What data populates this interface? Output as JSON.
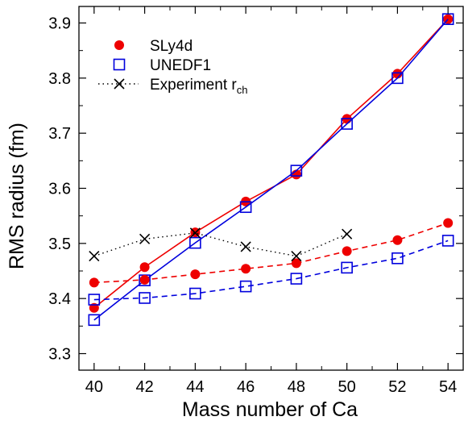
{
  "chart_data": {
    "type": "line",
    "title": "",
    "xlabel": "Mass number of Ca",
    "ylabel": "RMS radius (fm)",
    "xlim": [
      39.4,
      54.6
    ],
    "ylim": [
      3.27,
      3.93
    ],
    "xticks": [
      40,
      42,
      44,
      46,
      48,
      50,
      52,
      54
    ],
    "yticks": [
      3.3,
      3.4,
      3.5,
      3.6,
      3.7,
      3.8,
      3.9
    ],
    "ytick_labels": [
      "3.3",
      "3.4",
      "3.5",
      "3.6",
      "3.7",
      "3.8",
      "3.9"
    ],
    "grid": false,
    "legend_position": "top-left",
    "legend": [
      {
        "label": "SLy4d",
        "marker": "filled-circle",
        "color": "#ee0000"
      },
      {
        "label": "UNEDF1",
        "marker": "open-square",
        "color": "#0000dd"
      },
      {
        "label": "Experiment r",
        "subscript": "ch",
        "marker": "cross",
        "color": "#000000"
      }
    ],
    "series": [
      {
        "legend_index": 0,
        "marker": "filled-circle",
        "line": "solid",
        "color": "#ee0000",
        "x": [
          40,
          42,
          44,
          46,
          48,
          50,
          52,
          54
        ],
        "values": [
          3.383,
          3.457,
          3.52,
          3.576,
          3.625,
          3.726,
          3.808,
          3.907
        ]
      },
      {
        "legend_index": 1,
        "marker": "open-square",
        "line": "solid",
        "color": "#0000dd",
        "x": [
          40,
          42,
          44,
          46,
          48,
          50,
          52,
          54
        ],
        "values": [
          3.361,
          3.433,
          3.501,
          3.566,
          3.632,
          3.717,
          3.8,
          3.907
        ]
      },
      {
        "marker": "filled-circle",
        "line": "dashed",
        "color": "#ee0000",
        "x": [
          40,
          42,
          44,
          46,
          48,
          50,
          52,
          54
        ],
        "values": [
          3.429,
          3.434,
          3.444,
          3.454,
          3.464,
          3.486,
          3.506,
          3.537
        ]
      },
      {
        "marker": "open-square",
        "line": "dashed",
        "color": "#0000dd",
        "x": [
          40,
          42,
          44,
          46,
          48,
          50,
          52,
          54
        ],
        "values": [
          3.398,
          3.401,
          3.409,
          3.422,
          3.436,
          3.456,
          3.473,
          3.505
        ]
      },
      {
        "legend_index": 2,
        "marker": "cross",
        "line": "dotted",
        "color": "#000000",
        "x": [
          40,
          42,
          44,
          46,
          48,
          50
        ],
        "values": [
          3.477,
          3.508,
          3.519,
          3.494,
          3.477,
          3.517
        ]
      }
    ]
  }
}
